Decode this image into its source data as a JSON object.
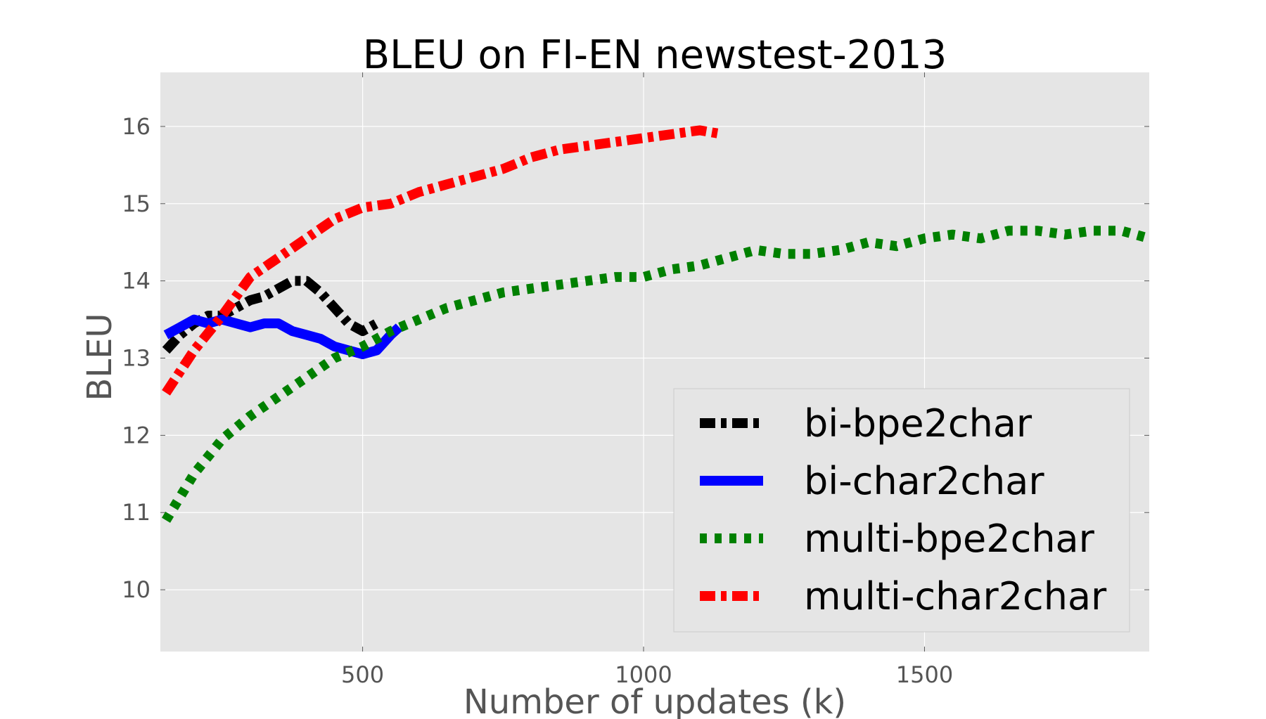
{
  "chart_data": {
    "type": "line",
    "title": "BLEU on FI-EN newstest-2013",
    "xlabel": "Number of updates (k)",
    "ylabel": "BLEU",
    "xlim": [
      140,
      1900
    ],
    "ylim": [
      9.2,
      16.7
    ],
    "xticks": [
      500,
      1000,
      1500
    ],
    "yticks": [
      10,
      11,
      12,
      13,
      14,
      15,
      16
    ],
    "grid": true,
    "legend_position": "lower-right",
    "series": [
      {
        "name": "bi-bpe2char",
        "color": "#000000",
        "linestyle": "dashdot",
        "x": [
          150,
          175,
          200,
          225,
          250,
          275,
          300,
          325,
          350,
          375,
          400,
          425,
          450,
          475,
          500,
          525
        ],
        "y": [
          13.1,
          13.3,
          13.45,
          13.55,
          13.55,
          13.65,
          13.75,
          13.8,
          13.9,
          14.0,
          14.0,
          13.85,
          13.65,
          13.45,
          13.35,
          13.45
        ]
      },
      {
        "name": "bi-char2char",
        "color": "#0000ff",
        "linestyle": "solid",
        "x": [
          150,
          175,
          200,
          225,
          250,
          275,
          300,
          325,
          350,
          375,
          400,
          425,
          450,
          475,
          500,
          525,
          550,
          565
        ],
        "y": [
          13.3,
          13.4,
          13.5,
          13.45,
          13.5,
          13.45,
          13.4,
          13.45,
          13.45,
          13.35,
          13.3,
          13.25,
          13.15,
          13.1,
          13.05,
          13.1,
          13.3,
          13.4
        ]
      },
      {
        "name": "multi-bpe2char",
        "color": "#008000",
        "linestyle": "dotted",
        "x": [
          150,
          200,
          250,
          300,
          350,
          400,
          450,
          500,
          550,
          600,
          650,
          700,
          750,
          800,
          850,
          900,
          950,
          1000,
          1050,
          1100,
          1150,
          1200,
          1250,
          1300,
          1350,
          1400,
          1450,
          1500,
          1550,
          1600,
          1650,
          1700,
          1750,
          1800,
          1850,
          1900
        ],
        "y": [
          10.9,
          11.5,
          11.95,
          12.25,
          12.5,
          12.75,
          13.0,
          13.15,
          13.35,
          13.5,
          13.65,
          13.75,
          13.85,
          13.9,
          13.95,
          14.0,
          14.05,
          14.05,
          14.15,
          14.2,
          14.3,
          14.4,
          14.35,
          14.35,
          14.4,
          14.5,
          14.45,
          14.55,
          14.6,
          14.55,
          14.65,
          14.65,
          14.6,
          14.65,
          14.65,
          14.55
        ]
      },
      {
        "name": "multi-char2char",
        "color": "#ff0000",
        "linestyle": "dashdot",
        "x": [
          150,
          200,
          250,
          300,
          350,
          400,
          450,
          500,
          550,
          600,
          650,
          700,
          750,
          800,
          850,
          900,
          950,
          1000,
          1050,
          1100,
          1140
        ],
        "y": [
          12.55,
          13.1,
          13.55,
          14.05,
          14.3,
          14.55,
          14.8,
          14.95,
          15.0,
          15.15,
          15.25,
          15.35,
          15.45,
          15.6,
          15.7,
          15.75,
          15.8,
          15.85,
          15.9,
          15.95,
          15.9
        ]
      }
    ]
  }
}
